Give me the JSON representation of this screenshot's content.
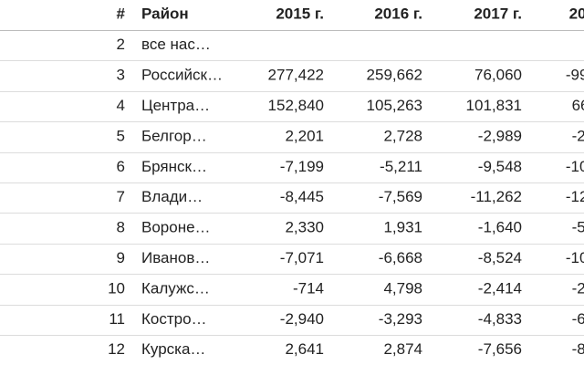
{
  "table": {
    "header": [
      "#",
      "Район",
      "2015 г.",
      "2016 г.",
      "2017 г.",
      "20"
    ],
    "rows": [
      [
        "2",
        "все нас…",
        null,
        null,
        null,
        null
      ],
      [
        "3",
        "Российск…",
        "277,422",
        "259,662",
        "76,060",
        "-99"
      ],
      [
        "4",
        "Центра…",
        "152,840",
        "105,263",
        "101,831",
        "66"
      ],
      [
        "5",
        "Белгор…",
        "2,201",
        "2,728",
        "-2,989",
        "-2"
      ],
      [
        "6",
        "Брянск…",
        "-7,199",
        "-5,211",
        "-9,548",
        "-10"
      ],
      [
        "7",
        "Влади…",
        "-8,445",
        "-7,569",
        "-11,262",
        "-12"
      ],
      [
        "8",
        "Вороне…",
        "2,330",
        "1,931",
        "-1,640",
        "-5"
      ],
      [
        "9",
        "Иванов…",
        "-7,071",
        "-6,668",
        "-8,524",
        "-10"
      ],
      [
        "10",
        "Калужс…",
        "-714",
        "4,798",
        "-2,414",
        "-2"
      ],
      [
        "11",
        "Костро…",
        "-2,940",
        "-3,293",
        "-4,833",
        "-6"
      ],
      [
        "12",
        "Курска…",
        "2,641",
        "2,874",
        "-7,656",
        "-8"
      ]
    ]
  }
}
